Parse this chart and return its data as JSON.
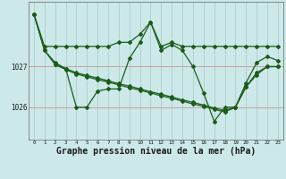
{
  "background_color": "#cce8e8",
  "grid_color_h": "#c8a0a0",
  "grid_color_v": "#a8c8c8",
  "line_color": "#1a5c1a",
  "marker_color": "#1a5c1a",
  "title": "Graphe pression niveau de la mer (hPa)",
  "title_fontsize": 7,
  "ytick_labels": [
    "1027",
    "1026"
  ],
  "ytick_vals": [
    1027.0,
    1026.0
  ],
  "ylim": [
    1025.2,
    1028.6
  ],
  "xlim": [
    -0.5,
    23.5
  ],
  "xticks": [
    0,
    1,
    2,
    3,
    4,
    5,
    6,
    7,
    8,
    9,
    10,
    11,
    12,
    13,
    14,
    15,
    16,
    17,
    18,
    19,
    20,
    21,
    22,
    23
  ],
  "series": [
    {
      "x": [
        0,
        1,
        2,
        3,
        4,
        5,
        6,
        7,
        8,
        9,
        10,
        11,
        12,
        13,
        14,
        15,
        16,
        17,
        18,
        19,
        20,
        21,
        22,
        23
      ],
      "y": [
        1028.3,
        1027.5,
        1027.5,
        1027.5,
        1027.5,
        1027.5,
        1027.5,
        1027.5,
        1027.6,
        1027.6,
        1027.8,
        1028.1,
        1027.5,
        1027.6,
        1027.5,
        1027.5,
        1027.5,
        1027.5,
        1027.5,
        1027.5,
        1027.5,
        1027.5,
        1027.5,
        1027.5
      ]
    },
    {
      "x": [
        0,
        1,
        2,
        3,
        4,
        5,
        6,
        7,
        8,
        9,
        10,
        11,
        12,
        13,
        14,
        15,
        16,
        17,
        18,
        19,
        20,
        21,
        22,
        23
      ],
      "y": [
        1028.3,
        1027.4,
        1027.1,
        1026.95,
        1026.0,
        1026.0,
        1026.4,
        1026.45,
        1026.45,
        1027.2,
        1027.6,
        1028.1,
        1027.4,
        1027.55,
        1027.4,
        1027.0,
        1026.35,
        1025.65,
        1026.0,
        1026.0,
        1026.6,
        1027.1,
        1027.25,
        1027.15
      ]
    },
    {
      "x": [
        0,
        1,
        2,
        3,
        4,
        5,
        6,
        7,
        8,
        9,
        10,
        11,
        12,
        13,
        14,
        15,
        16,
        17,
        18,
        19,
        20,
        21,
        22,
        23
      ],
      "y": [
        1028.3,
        1027.4,
        1027.05,
        1026.95,
        1026.85,
        1026.78,
        1026.72,
        1026.65,
        1026.58,
        1026.52,
        1026.45,
        1026.38,
        1026.32,
        1026.25,
        1026.18,
        1026.12,
        1026.05,
        1025.98,
        1025.92,
        1026.0,
        1026.5,
        1026.8,
        1027.0,
        1027.0
      ]
    },
    {
      "x": [
        2,
        3,
        4,
        5,
        6,
        7,
        8,
        9,
        10,
        11,
        12,
        13,
        14,
        15,
        16,
        17,
        18,
        19,
        20,
        21,
        22,
        23
      ],
      "y": [
        1027.05,
        1026.93,
        1026.82,
        1026.75,
        1026.68,
        1026.62,
        1026.55,
        1026.48,
        1026.42,
        1026.35,
        1026.28,
        1026.22,
        1026.15,
        1026.08,
        1026.02,
        1025.95,
        1025.88,
        1026.0,
        1026.5,
        1026.85,
        1027.0,
        1027.0
      ]
    }
  ]
}
